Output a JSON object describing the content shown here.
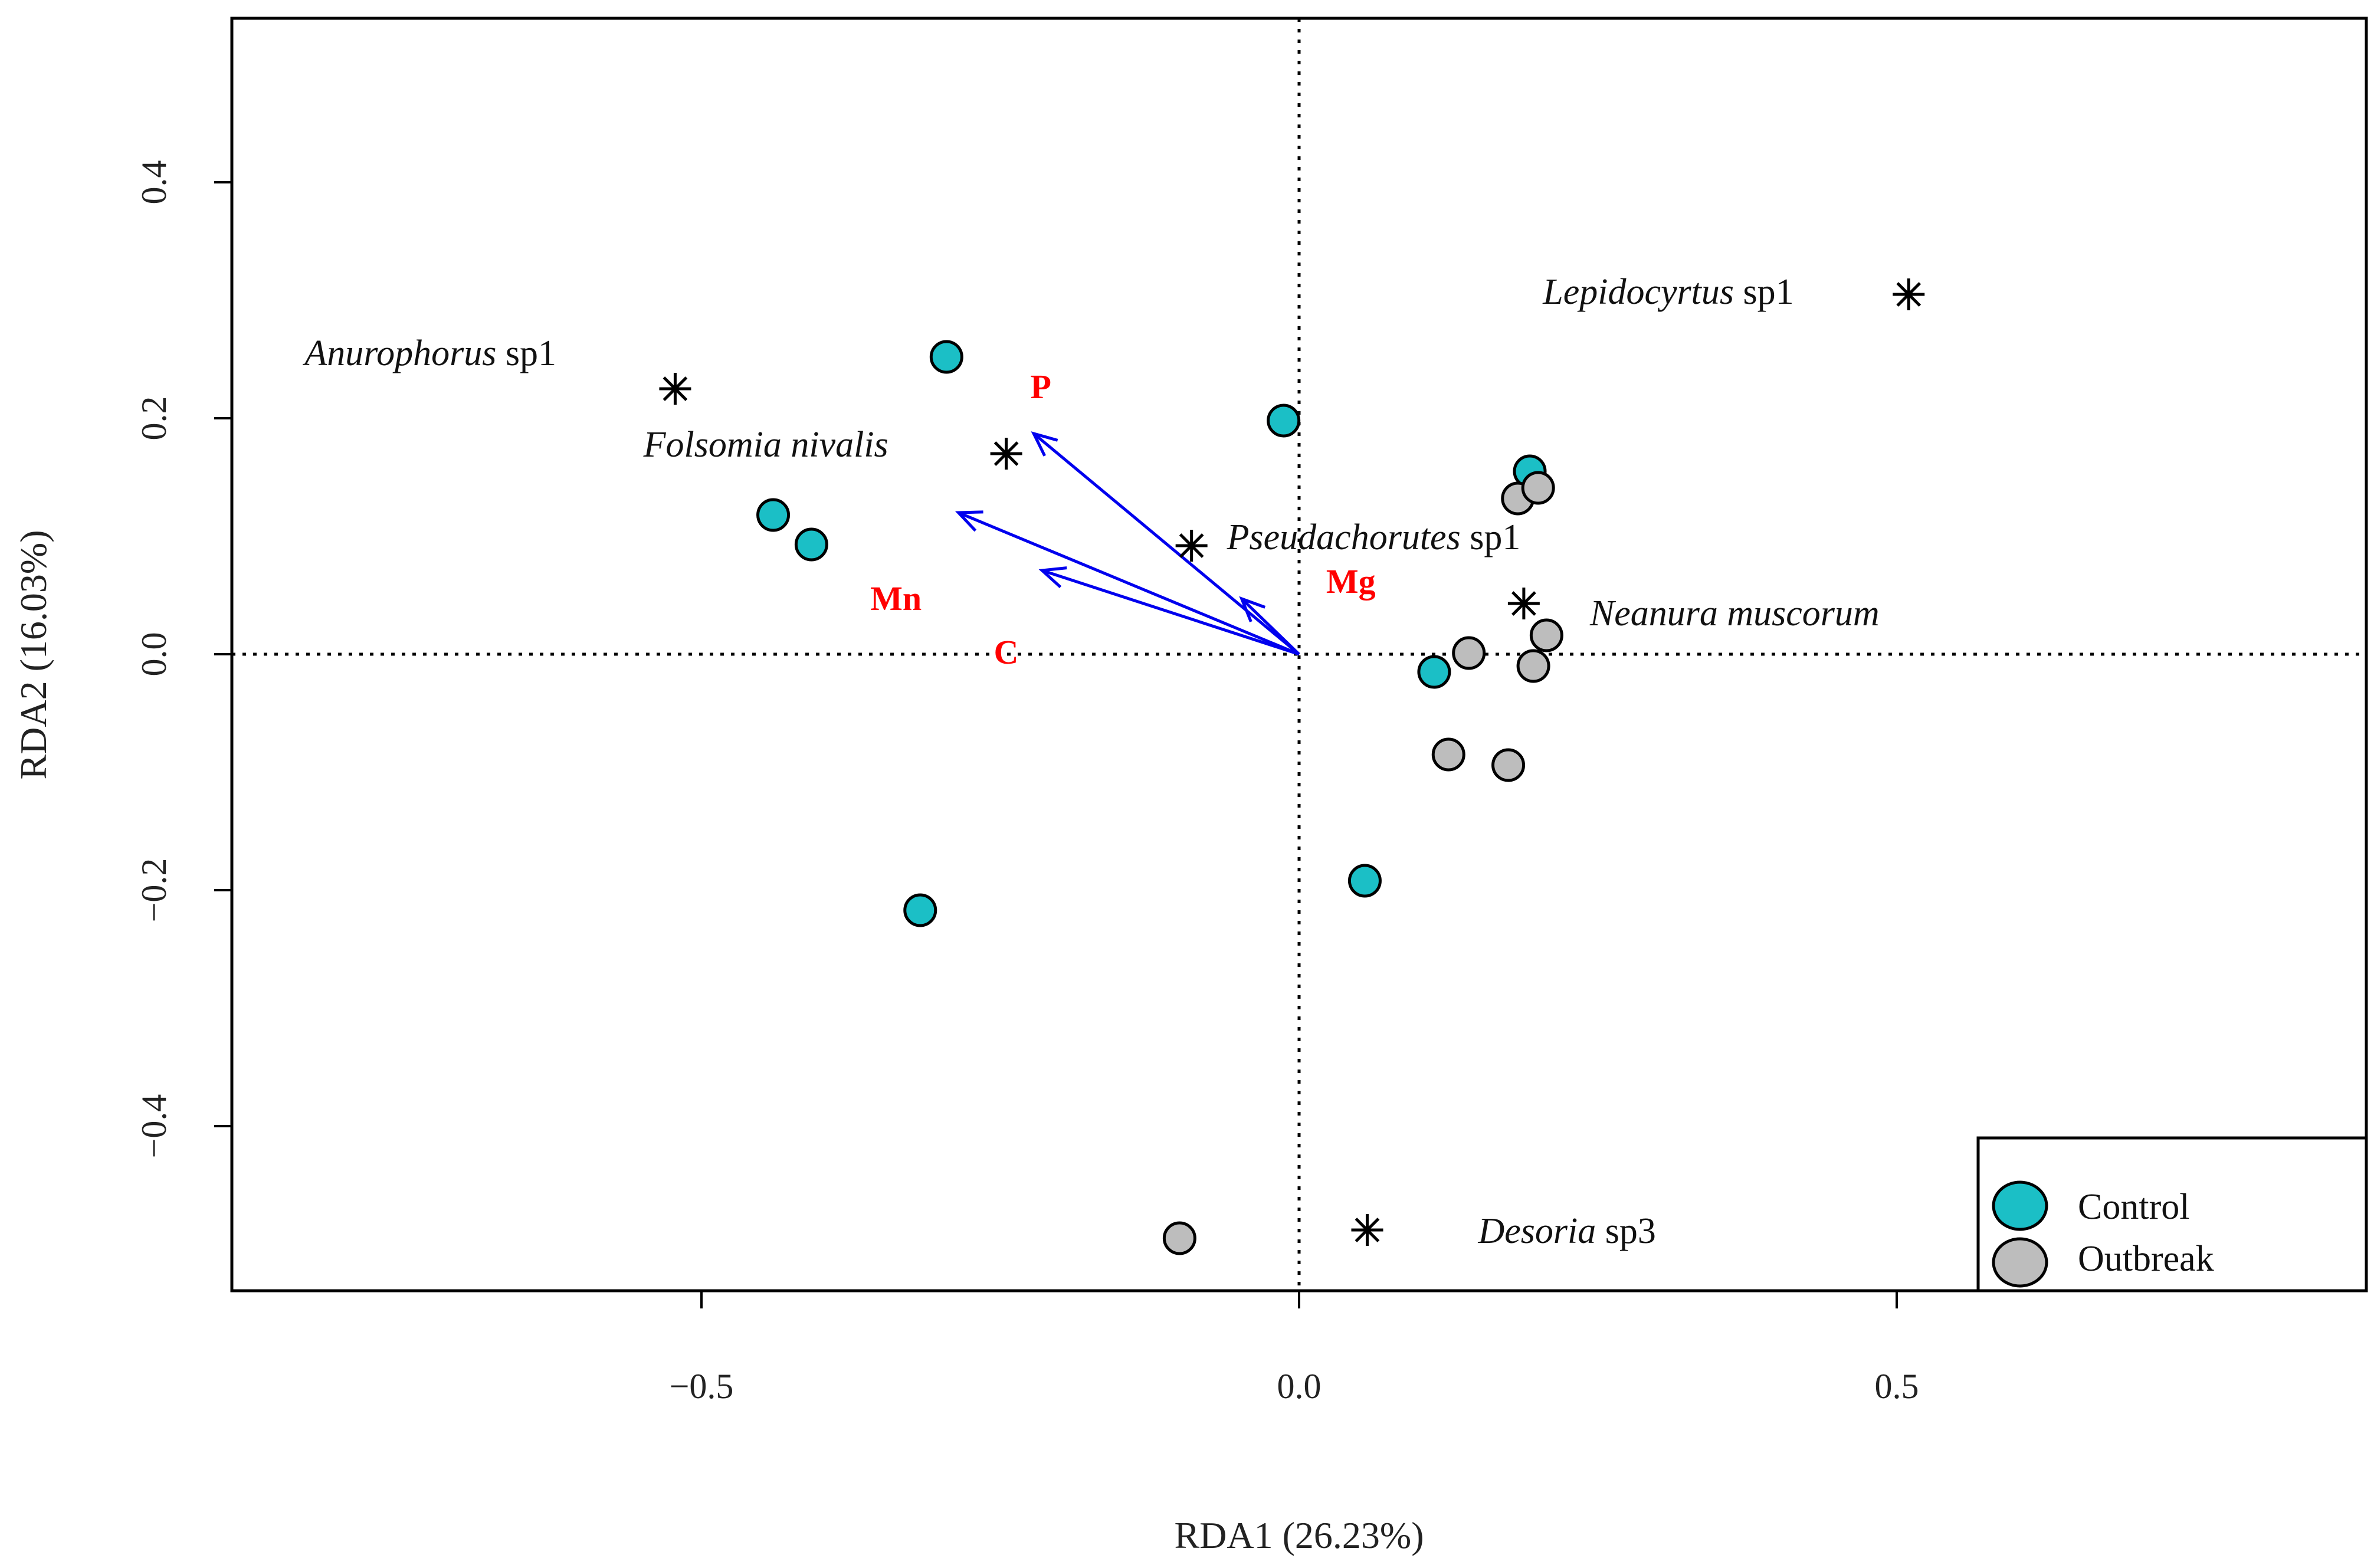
{
  "chart_data": {
    "type": "scatter",
    "title": "",
    "xlabel": "RDA1 (26.23%)",
    "ylabel": "RDA2 (16.03%)",
    "xlim": [
      -0.9,
      0.9
    ],
    "ylim": [
      -0.54,
      0.54
    ],
    "xticks": [
      -0.5,
      0.0,
      0.5
    ],
    "xtick_labels": [
      "−0.5",
      "0.0",
      "0.5"
    ],
    "yticks": [
      -0.4,
      -0.2,
      0.0,
      0.2,
      0.4
    ],
    "ytick_labels": [
      "−0.4",
      "−0.2",
      "0.0",
      "0.2",
      "0.4"
    ],
    "reference_lines": {
      "x": 0,
      "y": 0,
      "style": "dotted"
    },
    "series": [
      {
        "name": "Control",
        "color": "#1bbfc6",
        "points": [
          {
            "x": -0.295,
            "y": 0.252
          },
          {
            "x": -0.013,
            "y": 0.198
          },
          {
            "x": -0.44,
            "y": 0.118
          },
          {
            "x": -0.408,
            "y": 0.093
          },
          {
            "x": 0.193,
            "y": 0.155
          },
          {
            "x": 0.113,
            "y": -0.015
          },
          {
            "x": 0.055,
            "y": -0.192
          },
          {
            "x": -0.317,
            "y": -0.217
          }
        ]
      },
      {
        "name": "Outbreak",
        "color": "#bdbdbd",
        "points": [
          {
            "x": 0.183,
            "y": 0.132
          },
          {
            "x": 0.2,
            "y": 0.141
          },
          {
            "x": 0.207,
            "y": 0.016
          },
          {
            "x": 0.142,
            "y": 0.001
          },
          {
            "x": 0.196,
            "y": -0.01
          },
          {
            "x": 0.125,
            "y": -0.085
          },
          {
            "x": 0.175,
            "y": -0.094
          },
          {
            "x": -0.1,
            "y": -0.495
          }
        ]
      }
    ],
    "species": [
      {
        "name": "Anurophorus",
        "suffix": " sp1",
        "x": -0.522,
        "y": 0.225
      },
      {
        "name": "Folsomia nivalis",
        "suffix": "",
        "x": -0.245,
        "y": 0.17
      },
      {
        "name": "Pseudachorutes",
        "suffix": " sp1",
        "x": -0.09,
        "y": 0.092
      },
      {
        "name": "Neanura muscorum",
        "suffix": "",
        "x": 0.188,
        "y": 0.043
      },
      {
        "name": "Lepidocyrtus",
        "suffix": " sp1",
        "x": 0.51,
        "y": 0.305
      },
      {
        "name": "Desoria",
        "suffix": " sp3",
        "x": 0.057,
        "y": -0.488
      }
    ],
    "env_vectors": [
      {
        "name": "P",
        "x": -0.222,
        "y": 0.187
      },
      {
        "name": "Mn",
        "x": -0.285,
        "y": 0.12
      },
      {
        "name": "C",
        "x": -0.215,
        "y": 0.071
      },
      {
        "name": "Mg",
        "x": -0.048,
        "y": 0.047
      }
    ],
    "legend": {
      "position": "bottom-right",
      "entries": [
        "Control",
        "Outbreak"
      ]
    }
  },
  "colors": {
    "control": "#1bbfc6",
    "outbreak": "#bdbdbd",
    "vector": "#0000ee",
    "env_label": "#ff0000"
  }
}
